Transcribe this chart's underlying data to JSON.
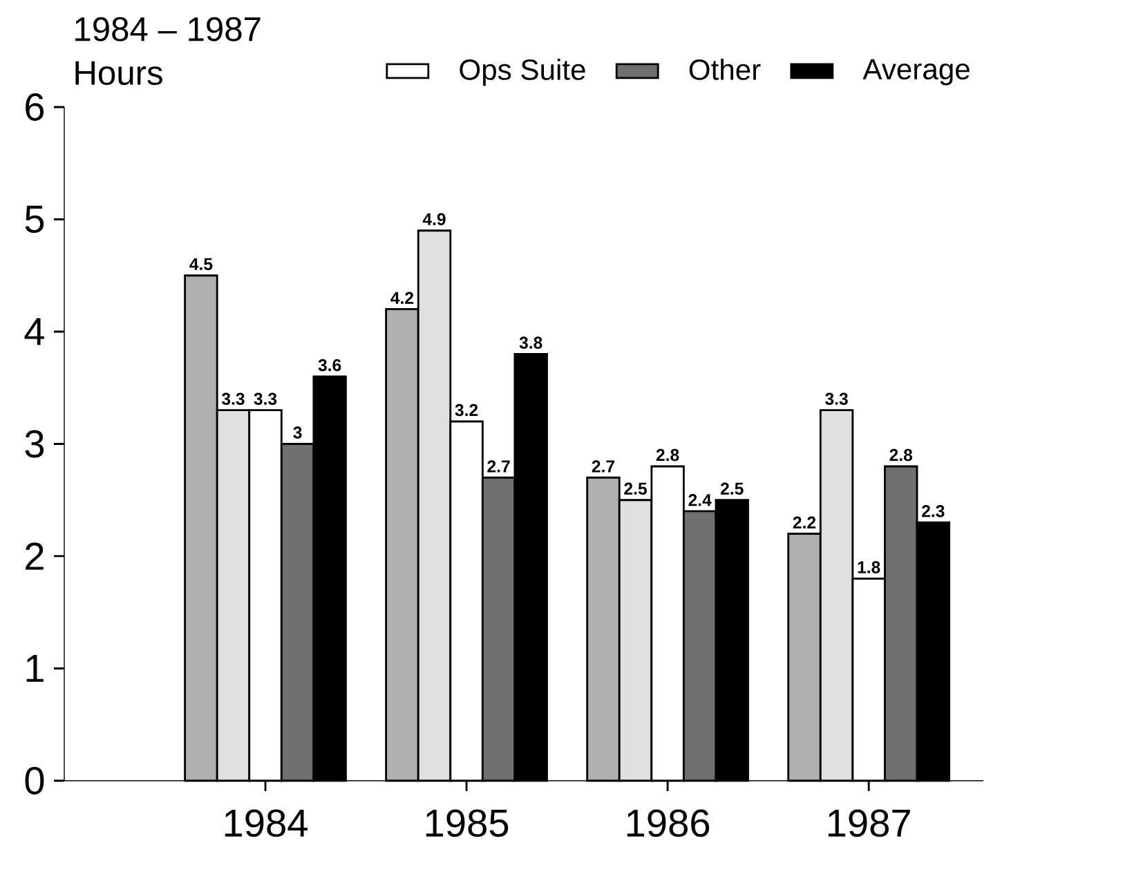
{
  "chart_data": {
    "type": "bar",
    "title": "1984 – 1987",
    "ylabel": "Hours",
    "categories": [
      "1984",
      "1985",
      "1986",
      "1987"
    ],
    "series": [
      {
        "color": "#b0b0b0",
        "values": [
          4.5,
          4.2,
          2.7,
          2.2
        ]
      },
      {
        "color": "#e0e0e0",
        "values": [
          3.3,
          4.9,
          2.5,
          3.3
        ]
      },
      {
        "name": "Ops Suite",
        "color": "#ffffff",
        "values": [
          3.3,
          3.2,
          2.8,
          1.8
        ]
      },
      {
        "name": "Other",
        "color": "#707070",
        "values": [
          3,
          2.7,
          2.4,
          2.8
        ]
      },
      {
        "name": "Average",
        "color": "#000000",
        "values": [
          3.6,
          3.8,
          2.5,
          2.3
        ]
      }
    ],
    "ylim": [
      0,
      6
    ],
    "yticks": [
      0,
      1,
      2,
      3,
      4,
      5,
      6
    ],
    "data_labels": true,
    "legend": "top right",
    "grid": false
  }
}
